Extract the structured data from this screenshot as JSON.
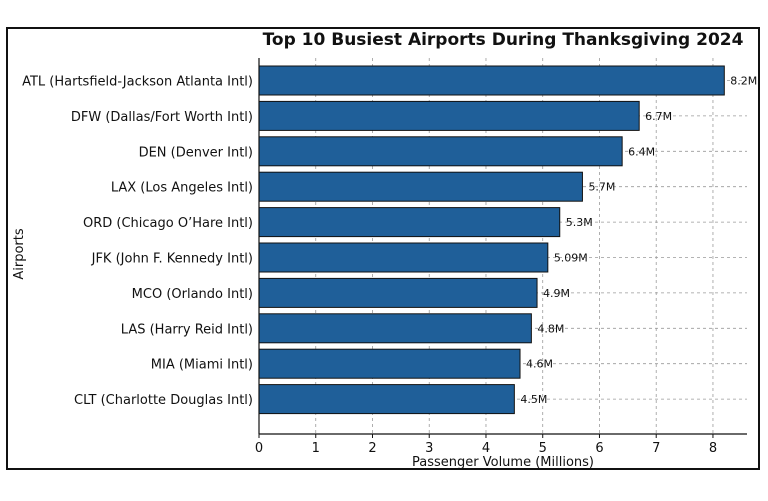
{
  "chart_data": {
    "type": "bar",
    "orientation": "horizontal",
    "title": "Top 10 Busiest Airports During Thanksgiving 2024",
    "xlabel": "Passenger Volume (Millions)",
    "ylabel": "Airports",
    "categories": [
      "ATL (Hartsfield-Jackson Atlanta Intl)",
      "DFW (Dallas/Fort Worth Intl)",
      "DEN (Denver Intl)",
      "LAX (Los Angeles Intl)",
      "ORD (Chicago O’Hare Intl)",
      "JFK (John F. Kennedy Intl)",
      "MCO (Orlando Intl)",
      "LAS (Harry Reid Intl)",
      "MIA (Miami Intl)",
      "CLT (Charlotte Douglas Intl)"
    ],
    "values": [
      8.2,
      6.7,
      6.4,
      5.7,
      5.3,
      5.09,
      4.9,
      4.8,
      4.6,
      4.5
    ],
    "data_labels": [
      "8.2M",
      "6.7M",
      "6.4M",
      "5.7M",
      "5.3M",
      "5.09M",
      "4.9M",
      "4.8M",
      "4.6M",
      "4.5M"
    ],
    "xlim": [
      0,
      8.6
    ],
    "xticks": [
      0,
      1,
      2,
      3,
      4,
      5,
      6,
      7,
      8
    ],
    "grid": true,
    "bar_color": "#1f5f99",
    "bar_edge_color": "#111111"
  }
}
